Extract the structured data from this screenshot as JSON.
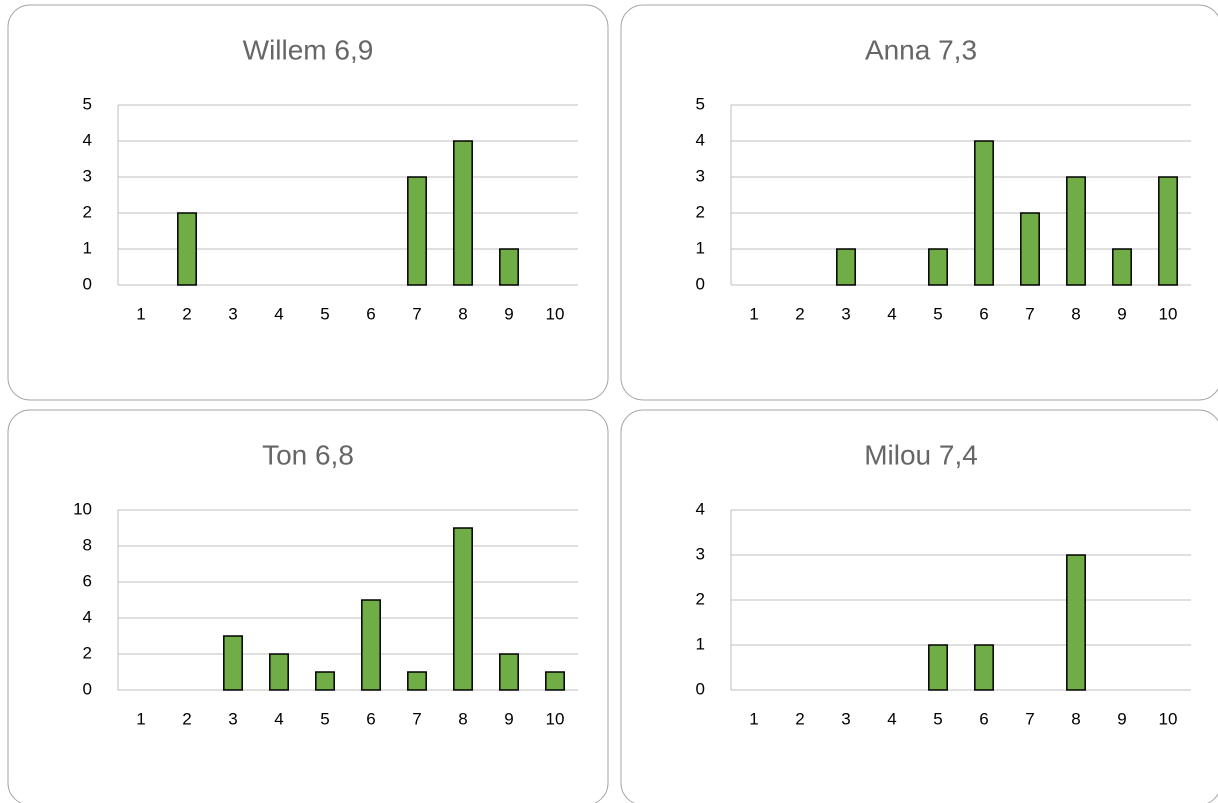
{
  "chart_data": [
    {
      "type": "bar",
      "title": "Willem 6,9",
      "categories": [
        "1",
        "2",
        "3",
        "4",
        "5",
        "6",
        "7",
        "8",
        "9",
        "10"
      ],
      "values": [
        0,
        2,
        0,
        0,
        0,
        0,
        3,
        4,
        1,
        0
      ],
      "color": "#70ad47",
      "ylim": [
        0,
        5
      ],
      "yticks": [
        0,
        1,
        2,
        3,
        4,
        5
      ],
      "grid": true
    },
    {
      "type": "bar",
      "title": "Anna 7,3",
      "categories": [
        "1",
        "2",
        "3",
        "4",
        "5",
        "6",
        "7",
        "8",
        "9",
        "10"
      ],
      "values": [
        0,
        0,
        1,
        0,
        1,
        4,
        2,
        3,
        1,
        3
      ],
      "color": "#70ad47",
      "ylim": [
        0,
        5
      ],
      "yticks": [
        0,
        1,
        2,
        3,
        4,
        5
      ],
      "grid": true
    },
    {
      "type": "bar",
      "title": "Ton 6,8",
      "categories": [
        "1",
        "2",
        "3",
        "4",
        "5",
        "6",
        "7",
        "8",
        "9",
        "10"
      ],
      "values": [
        0,
        0,
        3,
        2,
        1,
        5,
        1,
        9,
        2,
        1
      ],
      "color": "#70ad47",
      "ylim": [
        0,
        10
      ],
      "yticks": [
        0,
        2,
        4,
        6,
        8,
        10
      ],
      "grid": true
    },
    {
      "type": "bar",
      "title": "Milou 7,4",
      "categories": [
        "1",
        "2",
        "3",
        "4",
        "5",
        "6",
        "7",
        "8",
        "9",
        "10"
      ],
      "values": [
        0,
        0,
        0,
        0,
        1,
        1,
        0,
        3,
        0,
        0
      ],
      "color": "#70ad47",
      "ylim": [
        0,
        4
      ],
      "yticks": [
        0,
        1,
        2,
        3,
        4
      ],
      "grid": true
    }
  ]
}
